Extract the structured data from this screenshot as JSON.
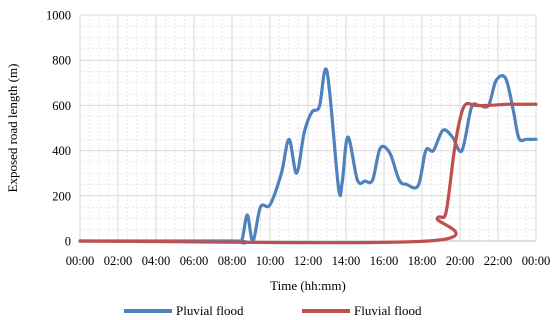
{
  "chart_data": {
    "type": "line",
    "xlabel": "Time (hh:mm)",
    "ylabel": "Exposed road length (m)",
    "ylim": [
      0,
      1000
    ],
    "yticks": [
      "0",
      "200",
      "400",
      "600",
      "800",
      "1000"
    ],
    "xlim": [
      0,
      24
    ],
    "xticks": [
      "00:00",
      "02:00",
      "04:00",
      "06:00",
      "08:00",
      "10:00",
      "12:00",
      "14:00",
      "16:00",
      "18:00",
      "20:00",
      "22:00",
      "00:00"
    ],
    "grid": true,
    "legend_position": "bottom",
    "series": [
      {
        "name": "Pluvial flood",
        "color": "#4f81bd",
        "x": [
          0,
          8.0,
          8.5,
          8.8,
          9.1,
          9.5,
          10.0,
          10.6,
          11.0,
          11.4,
          11.8,
          12.2,
          12.6,
          13.0,
          13.6,
          13.8,
          14.1,
          14.6,
          15.0,
          15.4,
          15.8,
          16.3,
          16.8,
          17.2,
          17.8,
          18.2,
          18.6,
          19.1,
          19.6,
          20.1,
          20.6,
          21.0,
          21.5,
          21.9,
          22.4,
          22.8,
          23.1,
          23.5,
          24.0
        ],
        "y": [
          0,
          0,
          0,
          115,
          0,
          150,
          160,
          300,
          450,
          300,
          480,
          570,
          595,
          750,
          240,
          260,
          460,
          270,
          265,
          270,
          410,
          390,
          270,
          250,
          245,
          400,
          400,
          490,
          460,
          400,
          590,
          600,
          600,
          710,
          720,
          580,
          455,
          450,
          450
        ]
      },
      {
        "name": "Fluvial flood",
        "color": "#c0504d",
        "x": [
          0,
          18.3,
          18.8,
          19.2,
          19.4,
          19.7,
          20.0,
          20.3,
          20.8,
          21.5,
          22.5,
          23.2,
          24.0
        ],
        "y": [
          0,
          0,
          100,
          110,
          200,
          400,
          540,
          605,
          600,
          600,
          605,
          605,
          605
        ]
      }
    ]
  }
}
